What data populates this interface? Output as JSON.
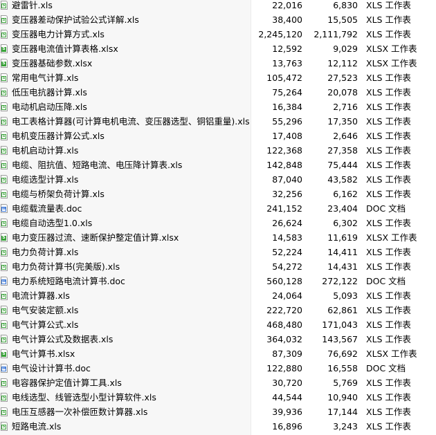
{
  "files": [
    {
      "name": "避雷针.xls",
      "size": "22,016",
      "packed": "6,830",
      "type": "XLS 工作表",
      "icon": "xls"
    },
    {
      "name": "变压器差动保护试验公式详解.xls",
      "size": "38,400",
      "packed": "15,505",
      "type": "XLS 工作表",
      "icon": "xls"
    },
    {
      "name": "变压器电力计算方式.xls",
      "size": "2,245,120",
      "packed": "2,111,792",
      "type": "XLS 工作表",
      "icon": "xls"
    },
    {
      "name": "变压器电流值计算表格.xlsx",
      "size": "12,592",
      "packed": "9,029",
      "type": "XLSX 工作表",
      "icon": "xlsx"
    },
    {
      "name": "变压器基础参数.xlsx",
      "size": "13,763",
      "packed": "12,112",
      "type": "XLSX 工作表",
      "icon": "xlsx"
    },
    {
      "name": "常用电气计算.xls",
      "size": "105,472",
      "packed": "27,523",
      "type": "XLS 工作表",
      "icon": "xls"
    },
    {
      "name": "低压电抗器计算.xls",
      "size": "75,264",
      "packed": "20,078",
      "type": "XLS 工作表",
      "icon": "xls"
    },
    {
      "name": "电动机启动压降.xls",
      "size": "16,384",
      "packed": "2,716",
      "type": "XLS 工作表",
      "icon": "xls"
    },
    {
      "name": "电工表格计算器(可计算电机电流、变压器选型、铜铝重量).xls",
      "size": "55,296",
      "packed": "17,350",
      "type": "XLS 工作表",
      "icon": "xls"
    },
    {
      "name": "电机变压器计算公式.xls",
      "size": "17,408",
      "packed": "2,646",
      "type": "XLS 工作表",
      "icon": "xls"
    },
    {
      "name": "电机启动计算.xls",
      "size": "122,368",
      "packed": "27,358",
      "type": "XLS 工作表",
      "icon": "xls"
    },
    {
      "name": "电缆、阻抗值、短路电流、电压降计算表.xls",
      "size": "142,848",
      "packed": "75,444",
      "type": "XLS 工作表",
      "icon": "xls"
    },
    {
      "name": "电缆选型计算.xls",
      "size": "87,040",
      "packed": "43,582",
      "type": "XLS 工作表",
      "icon": "xls"
    },
    {
      "name": "电缆与桥架负荷计算.xls",
      "size": "32,256",
      "packed": "6,162",
      "type": "XLS 工作表",
      "icon": "xls"
    },
    {
      "name": "电缆载流量表.doc",
      "size": "241,152",
      "packed": "23,404",
      "type": "DOC 文档",
      "icon": "doc"
    },
    {
      "name": "电缆自动选型1.0.xls",
      "size": "26,624",
      "packed": "6,302",
      "type": "XLS 工作表",
      "icon": "xls"
    },
    {
      "name": "电力变压器过流、速断保护整定值计算.xlsx",
      "size": "14,583",
      "packed": "11,619",
      "type": "XLSX 工作表",
      "icon": "xlsx"
    },
    {
      "name": "电力负荷计算.xls",
      "size": "52,224",
      "packed": "14,411",
      "type": "XLS 工作表",
      "icon": "xls"
    },
    {
      "name": "电力负荷计算书(完美版).xls",
      "size": "54,272",
      "packed": "14,431",
      "type": "XLS 工作表",
      "icon": "xls"
    },
    {
      "name": "电力系统短路电流计算书.doc",
      "size": "560,128",
      "packed": "272,122",
      "type": "DOC 文档",
      "icon": "doc"
    },
    {
      "name": "电流计算器.xls",
      "size": "24,064",
      "packed": "5,093",
      "type": "XLS 工作表",
      "icon": "xls"
    },
    {
      "name": "电气安装定额.xls",
      "size": "222,720",
      "packed": "62,861",
      "type": "XLS 工作表",
      "icon": "xls"
    },
    {
      "name": "电气计算公式.xls",
      "size": "468,480",
      "packed": "171,043",
      "type": "XLS 工作表",
      "icon": "xls"
    },
    {
      "name": "电气计算公式及数据表.xls",
      "size": "364,032",
      "packed": "143,567",
      "type": "XLS 工作表",
      "icon": "xls"
    },
    {
      "name": "电气计算书.xlsx",
      "size": "87,309",
      "packed": "76,692",
      "type": "XLSX 工作表",
      "icon": "xlsx"
    },
    {
      "name": "电气设计计算书.doc",
      "size": "122,880",
      "packed": "16,558",
      "type": "DOC 文档",
      "icon": "doc"
    },
    {
      "name": "电容器保护定值计算工具.xls",
      "size": "30,720",
      "packed": "5,769",
      "type": "XLS 工作表",
      "icon": "xls"
    },
    {
      "name": "电线选型、线管选型小型计算软件.xls",
      "size": "44,544",
      "packed": "10,940",
      "type": "XLS 工作表",
      "icon": "xls"
    },
    {
      "name": "电压互感器一次补偿匝数计算器.xls",
      "size": "39,936",
      "packed": "17,144",
      "type": "XLS 工作表",
      "icon": "xls"
    },
    {
      "name": "短路电流.xls",
      "size": "16,896",
      "packed": "3,243",
      "type": "XLS 工作表",
      "icon": "xls"
    }
  ],
  "colors": {
    "xls": "#3aa33a",
    "doc": "#3b78d8",
    "name_column_bg": "#f7f7f7"
  }
}
